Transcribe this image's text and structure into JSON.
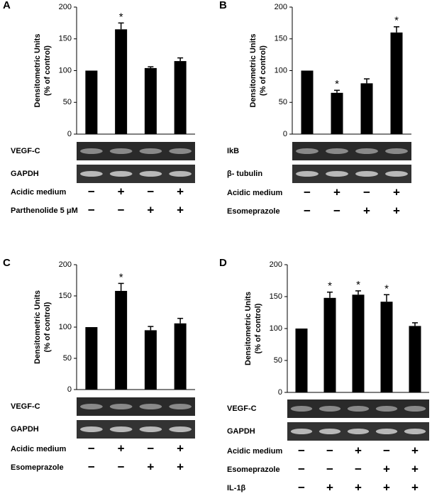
{
  "chart_data": [
    {
      "type": "bar",
      "panel": "A",
      "ylabel": [
        "Densitometric Units",
        "(% of control)"
      ],
      "categories": [
        null,
        null,
        null,
        null
      ],
      "values": [
        100,
        165,
        104,
        115
      ],
      "errors": [
        0,
        10,
        2,
        5
      ],
      "significance": [
        null,
        "*",
        null,
        null
      ],
      "color": "#000000",
      "ylim": [
        0,
        200
      ],
      "yticks": [
        0,
        50,
        100,
        150,
        200
      ],
      "blots": [
        "VEGF-C",
        "GAPDH"
      ],
      "treatments": [
        {
          "name": "Acidic medium",
          "signs": [
            "−",
            "+",
            "−",
            "+"
          ]
        },
        {
          "name": "Parthenolide 5 μM",
          "signs": [
            "−",
            "−",
            "+",
            "+"
          ]
        }
      ]
    },
    {
      "type": "bar",
      "panel": "B",
      "ylabel": [
        "Densitometric Units",
        "(% of control)"
      ],
      "categories": [
        null,
        null,
        null,
        null
      ],
      "values": [
        100,
        65,
        80,
        160
      ],
      "errors": [
        0,
        4,
        7,
        9
      ],
      "significance": [
        null,
        "*",
        null,
        "*"
      ],
      "color": "#000000",
      "ylim": [
        0,
        200
      ],
      "yticks": [
        0,
        50,
        100,
        150,
        200
      ],
      "blots": [
        "IkB",
        "β- tubulin"
      ],
      "treatments": [
        {
          "name": "Acidic medium",
          "signs": [
            "−",
            "+",
            "−",
            "+"
          ]
        },
        {
          "name": "Esomeprazole",
          "signs": [
            "−",
            "−",
            "+",
            "+"
          ]
        }
      ]
    },
    {
      "type": "bar",
      "panel": "C",
      "ylabel": [
        "Densitometric Units",
        "(% of control)"
      ],
      "categories": [
        null,
        null,
        null,
        null
      ],
      "values": [
        100,
        158,
        95,
        106
      ],
      "errors": [
        0,
        12,
        6,
        8
      ],
      "significance": [
        null,
        "*",
        null,
        null
      ],
      "color": "#000000",
      "ylim": [
        0,
        200
      ],
      "yticks": [
        0,
        50,
        100,
        150,
        200
      ],
      "blots": [
        "VEGF-C",
        "GAPDH"
      ],
      "treatments": [
        {
          "name": "Acidic medium",
          "signs": [
            "−",
            "+",
            "−",
            "+"
          ]
        },
        {
          "name": "Esomeprazole",
          "signs": [
            "−",
            "−",
            "+",
            "+"
          ]
        }
      ]
    },
    {
      "type": "bar",
      "panel": "D",
      "ylabel": [
        "Densitometric Units",
        "(% of control)"
      ],
      "categories": [
        null,
        null,
        null,
        null,
        null
      ],
      "values": [
        100,
        148,
        153,
        142,
        104
      ],
      "errors": [
        0,
        9,
        6,
        11,
        5
      ],
      "significance": [
        null,
        "*",
        "*",
        "*",
        null
      ],
      "color": "#000000",
      "ylim": [
        0,
        200
      ],
      "yticks": [
        0,
        50,
        100,
        150,
        200
      ],
      "blots": [
        "VEGF-C",
        "GAPDH"
      ],
      "treatments": [
        {
          "name": "Acidic medium",
          "signs": [
            "−",
            "−",
            "+",
            "−",
            "+"
          ]
        },
        {
          "name": "Esomeprazole",
          "signs": [
            "−",
            "−",
            "−",
            "+",
            "+"
          ]
        },
        {
          "name": "IL-1β",
          "signs": [
            "−",
            "+",
            "+",
            "+",
            "+"
          ]
        }
      ]
    }
  ]
}
